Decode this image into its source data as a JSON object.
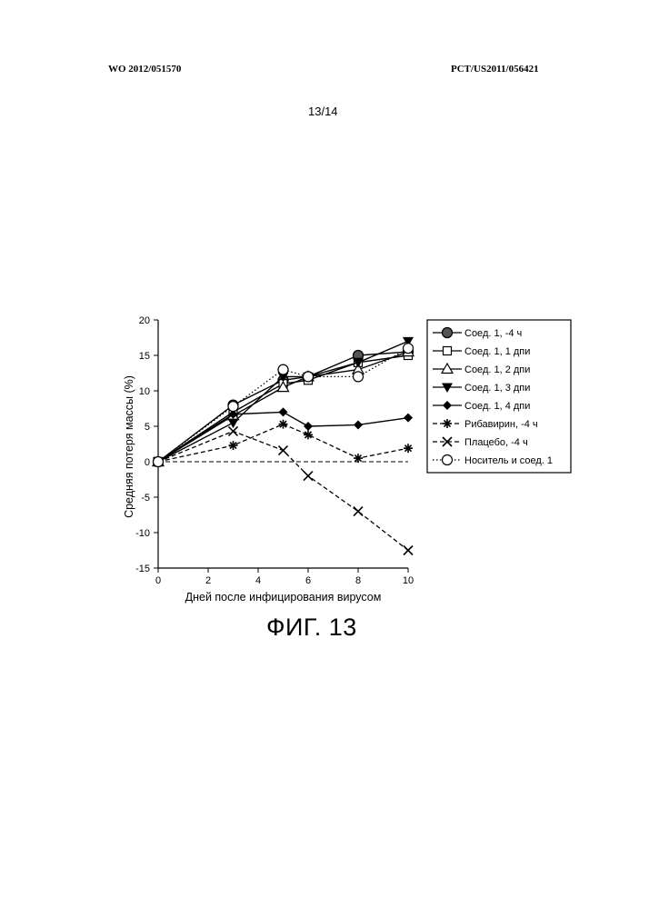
{
  "header": {
    "left": "WO 2012/051570",
    "right": "PCT/US2011/056421"
  },
  "page_number": "13/14",
  "figure_label": "ФИГ. 13",
  "chart_data": {
    "type": "line",
    "xlabel": "Дней после инфицирования вирусом",
    "ylabel": "Средняя потеря массы (%)",
    "xlim": [
      0,
      10
    ],
    "ylim": [
      -15,
      20
    ],
    "xticks": [
      0,
      2,
      4,
      6,
      8,
      10
    ],
    "yticks": [
      20,
      15,
      10,
      5,
      0,
      -5,
      -10,
      -15
    ],
    "reference_line": 0,
    "legend_position": "right",
    "series": [
      {
        "name": "Соед. 1, -4 ч",
        "style": "solid",
        "marker": "circle-filled",
        "x": [
          0,
          3,
          5,
          6,
          8,
          10
        ],
        "y": [
          0,
          8,
          11.5,
          12,
          15,
          15.5
        ]
      },
      {
        "name": "Соед. 1, 1 дпи",
        "style": "solid",
        "marker": "square-open",
        "x": [
          0,
          3,
          5,
          6,
          8,
          10
        ],
        "y": [
          0,
          7,
          11,
          11.5,
          14,
          15
        ]
      },
      {
        "name": "Соед. 1, 2 дпи",
        "style": "solid",
        "marker": "triangle-up-open",
        "x": [
          0,
          3,
          5,
          6,
          8,
          10
        ],
        "y": [
          0,
          6.5,
          10.5,
          12,
          13,
          15.5
        ]
      },
      {
        "name": "Соед. 1, 3 дпи",
        "style": "solid",
        "marker": "triangle-down-filled",
        "x": [
          0,
          3,
          5,
          6,
          8,
          10
        ],
        "y": [
          0,
          5.5,
          12,
          12,
          14,
          17
        ]
      },
      {
        "name": "Соед. 1, 4 дпи",
        "style": "solid",
        "marker": "diamond-filled",
        "x": [
          0,
          3,
          5,
          6,
          8,
          10
        ],
        "y": [
          0,
          6.7,
          7,
          5,
          5.2,
          6.2
        ]
      },
      {
        "name": "Рибавирин, -4 ч",
        "style": "dashed",
        "marker": "asterisk",
        "x": [
          0,
          3,
          5,
          6,
          8,
          10
        ],
        "y": [
          0,
          2.3,
          5.3,
          3.8,
          0.5,
          1.9
        ]
      },
      {
        "name": "Плацебо, -4 ч",
        "style": "dashed",
        "marker": "x",
        "x": [
          0,
          3,
          5,
          6,
          8,
          10
        ],
        "y": [
          0,
          4.3,
          1.6,
          -2,
          -7,
          -12.5
        ]
      },
      {
        "name": "Носитель и соед. 1",
        "style": "dotted",
        "marker": "circle-open",
        "x": [
          0,
          3,
          5,
          6,
          8,
          10
        ],
        "y": [
          0,
          7.8,
          13,
          12,
          12,
          16
        ]
      }
    ]
  }
}
